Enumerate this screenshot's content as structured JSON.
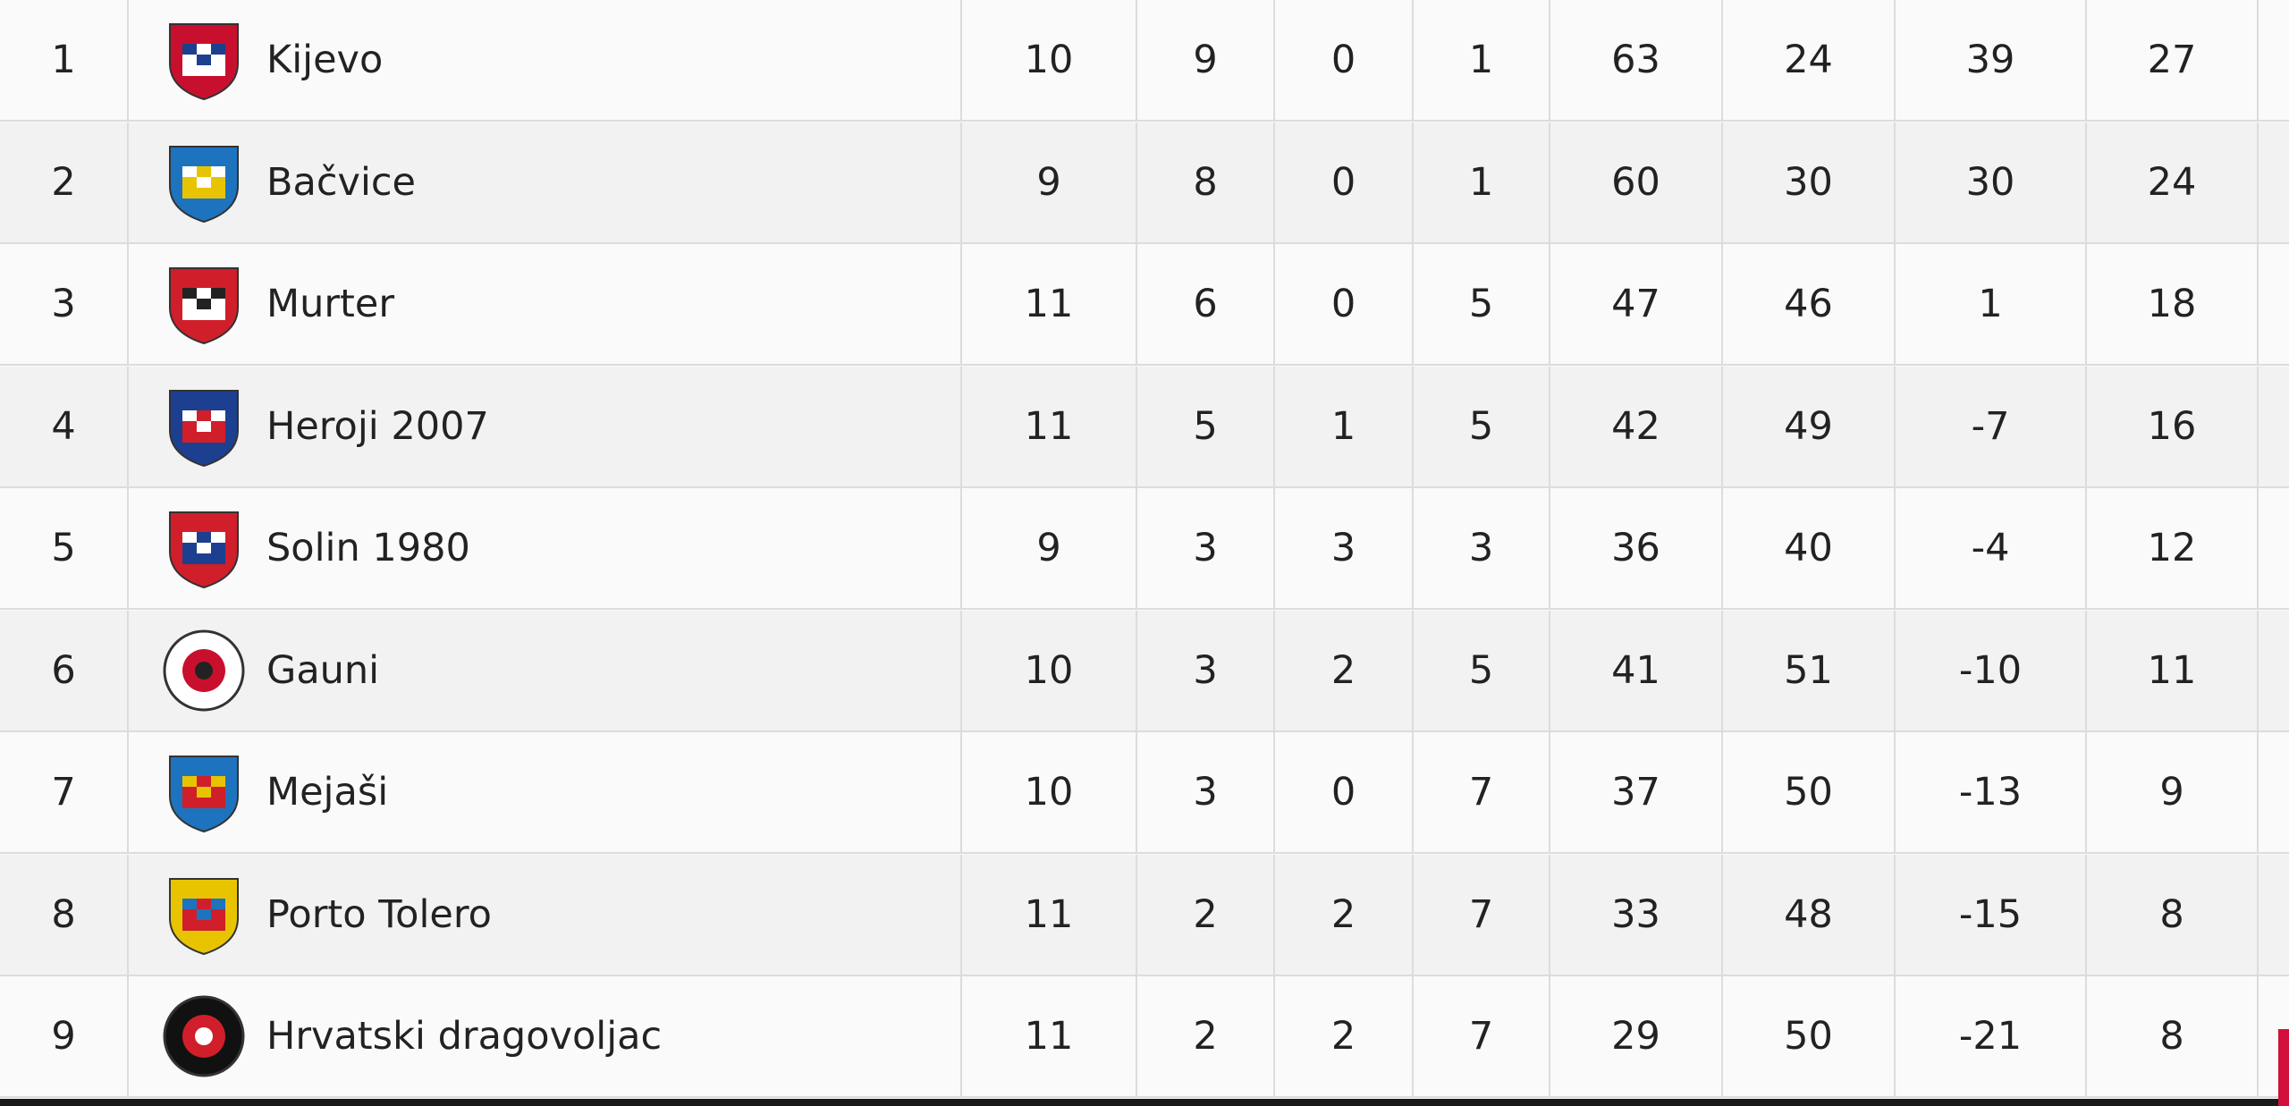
{
  "table": {
    "rows": [
      {
        "rank": 1,
        "team": "Kijevo",
        "stats": [
          10,
          9,
          0,
          1,
          63,
          24,
          39,
          27
        ]
      },
      {
        "rank": 2,
        "team": "Bačvice",
        "stats": [
          9,
          8,
          0,
          1,
          60,
          30,
          30,
          24
        ]
      },
      {
        "rank": 3,
        "team": "Murter",
        "stats": [
          11,
          6,
          0,
          5,
          47,
          46,
          1,
          18
        ]
      },
      {
        "rank": 4,
        "team": "Heroji 2007",
        "stats": [
          11,
          5,
          1,
          5,
          42,
          49,
          -7,
          16
        ]
      },
      {
        "rank": 5,
        "team": "Solin 1980",
        "stats": [
          9,
          3,
          3,
          3,
          36,
          40,
          -4,
          12
        ]
      },
      {
        "rank": 6,
        "team": "Gauni",
        "stats": [
          10,
          3,
          2,
          5,
          41,
          51,
          -10,
          11
        ]
      },
      {
        "rank": 7,
        "team": "Mejaši",
        "stats": [
          10,
          3,
          0,
          7,
          37,
          50,
          -13,
          9
        ]
      },
      {
        "rank": 8,
        "team": "Porto Tolero",
        "stats": [
          11,
          2,
          2,
          7,
          33,
          48,
          -15,
          8
        ]
      },
      {
        "rank": 9,
        "team": "Hrvatski dragovoljac",
        "stats": [
          11,
          2,
          2,
          7,
          29,
          50,
          -21,
          8
        ]
      }
    ]
  }
}
